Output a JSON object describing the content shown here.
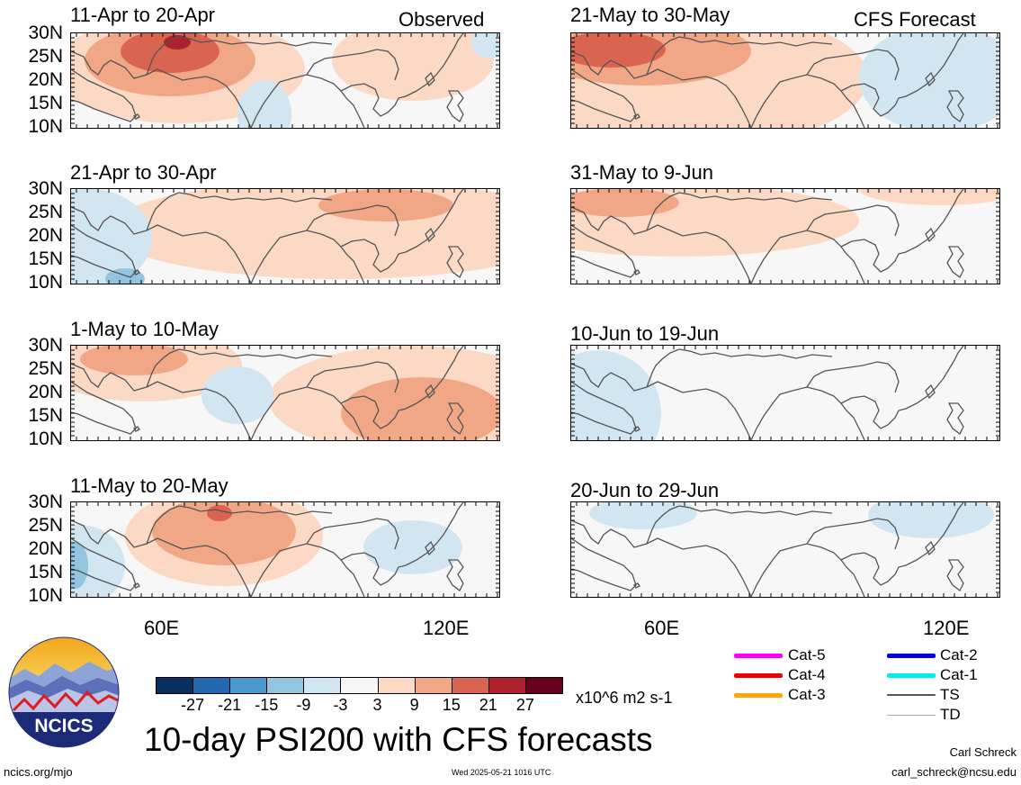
{
  "panels": [
    {
      "id": "p1",
      "title": "11-Apr to 20-Apr",
      "tag": "Observed"
    },
    {
      "id": "p2",
      "title": "21-Apr to 30-Apr",
      "tag": ""
    },
    {
      "id": "p3",
      "title": "1-May to 10-May",
      "tag": ""
    },
    {
      "id": "p4",
      "title": "11-May to 20-May",
      "tag": ""
    },
    {
      "id": "p5",
      "title": "21-May to 30-May",
      "tag": "CFS Forecast"
    },
    {
      "id": "p6",
      "title": "31-May to 9-Jun",
      "tag": ""
    },
    {
      "id": "p7",
      "title": "10-Jun to 19-Jun",
      "tag": ""
    },
    {
      "id": "p8",
      "title": "20-Jun to 29-Jun",
      "tag": ""
    }
  ],
  "lat_labels": [
    "30N",
    "25N",
    "20N",
    "15N",
    "10N"
  ],
  "lon_labels": [
    "60E",
    "120E"
  ],
  "colorbar": {
    "colors": [
      "#0a2f5e",
      "#2369b2",
      "#4b98cc",
      "#93c5e0",
      "#d2e6f1",
      "#f7f7f7",
      "#fcd9c4",
      "#f1a785",
      "#d9644f",
      "#b0202e",
      "#6a0020"
    ],
    "labels": [
      "-27",
      "-21",
      "-15",
      "-9",
      "-3",
      "3",
      "9",
      "15",
      "21",
      "27"
    ],
    "units": "x10^6 m2 s-1"
  },
  "legend": {
    "left": [
      {
        "label": "Cat-5",
        "color": "#ff00ff"
      },
      {
        "label": "Cat-4",
        "color": "#ee0000"
      },
      {
        "label": "Cat-3",
        "color": "#ffa500"
      }
    ],
    "right": [
      {
        "label": "Cat-2",
        "color": "#0000dd"
      },
      {
        "label": "Cat-1",
        "color": "#00eeee"
      },
      {
        "label": "TS",
        "color": "#555555"
      },
      {
        "label": "TD",
        "color": "#aaaaaa"
      }
    ]
  },
  "logo_text": "NCICS",
  "main_title": "10-day PSI200 with CFS forecasts",
  "footer": {
    "url": "ncics.org/mjo",
    "timestamp": "Wed 2025-05-21 1016 UTC",
    "author": "Carl Schreck",
    "email": "carl_schreck@ncsu.edu"
  }
}
